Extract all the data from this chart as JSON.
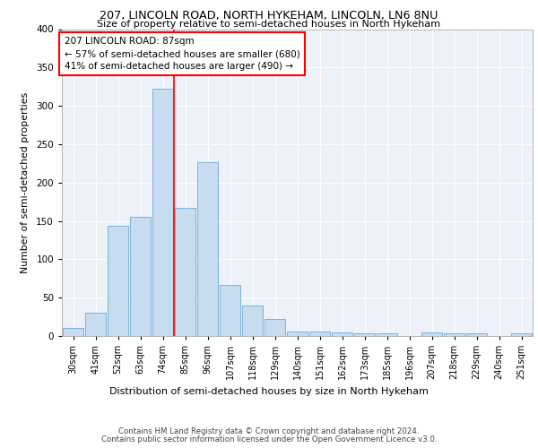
{
  "title1": "207, LINCOLN ROAD, NORTH HYKEHAM, LINCOLN, LN6 8NU",
  "title2": "Size of property relative to semi-detached houses in North Hykeham",
  "xlabel": "Distribution of semi-detached houses by size in North Hykeham",
  "ylabel": "Number of semi-detached properties",
  "categories": [
    "30sqm",
    "41sqm",
    "52sqm",
    "63sqm",
    "74sqm",
    "85sqm",
    "96sqm",
    "107sqm",
    "118sqm",
    "129sqm",
    "140sqm",
    "151sqm",
    "162sqm",
    "173sqm",
    "185sqm",
    "196sqm",
    "207sqm",
    "218sqm",
    "229sqm",
    "240sqm",
    "251sqm"
  ],
  "values": [
    10,
    30,
    144,
    155,
    322,
    167,
    226,
    67,
    40,
    22,
    6,
    6,
    5,
    3,
    3,
    0,
    5,
    4,
    4,
    0,
    3
  ],
  "bar_color": "#c8dcf0",
  "bar_edge_color": "#6aaad4",
  "highlight_line_index": 4.5,
  "annotation_text_line1": "207 LINCOLN ROAD: 87sqm",
  "annotation_text_line2": "← 57% of semi-detached houses are smaller (680)",
  "annotation_text_line3": "41% of semi-detached houses are larger (490) →",
  "ylim": [
    0,
    400
  ],
  "yticks": [
    0,
    50,
    100,
    150,
    200,
    250,
    300,
    350,
    400
  ],
  "background_color": "#edf2fa",
  "footer1": "Contains HM Land Registry data © Crown copyright and database right 2024.",
  "footer2": "Contains public sector information licensed under the Open Government Licence v3.0."
}
